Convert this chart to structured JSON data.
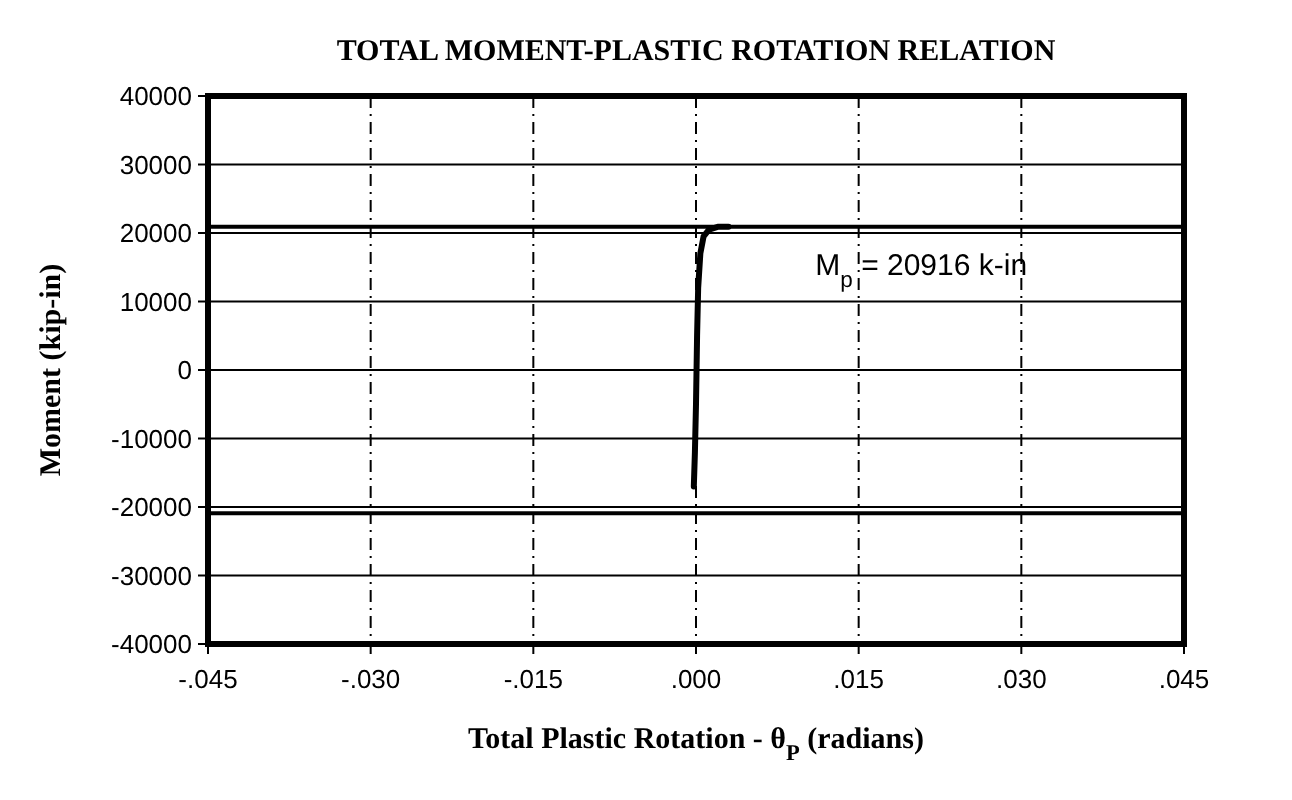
{
  "chart_data": {
    "type": "line",
    "title": "TOTAL MOMENT-PLASTIC ROTATION RELATION",
    "xlabel": "Total Plastic Rotation - θ$_{P}$ (radians)",
    "ylabel": "Moment (kip-in)",
    "series": [
      {
        "color": "#000000",
        "x": [
          -0.0002,
          -0.0001,
          0,
          0.0001,
          0.0002,
          0.0004,
          0.0007,
          0.0012,
          0.002,
          0.003
        ],
        "values": [
          -17000,
          -12000,
          -5000,
          5000,
          12000,
          17000,
          19500,
          20500,
          20900,
          20900
        ]
      }
    ],
    "xlim": [
      -0.045,
      0.045
    ],
    "xticks": [
      {
        "value": -0.045,
        "label": "-.045"
      },
      {
        "value": -0.03,
        "label": "-.030"
      },
      {
        "value": -0.015,
        "label": "-.015"
      },
      {
        "value": 0,
        "label": ".000"
      },
      {
        "value": 0.015,
        "label": ".015"
      },
      {
        "value": 0.03,
        "label": ".030"
      },
      {
        "value": 0.045,
        "label": ".045"
      }
    ],
    "ylim": [
      -40000,
      40000
    ],
    "yticks": [
      -40000,
      -30000,
      -20000,
      -10000,
      0,
      10000,
      20000,
      30000,
      40000
    ],
    "ref_lines": [
      {
        "axis": "y",
        "value": 20916,
        "label": "M$_{p}$ = 20916 k-in",
        "color": "#000000"
      },
      {
        "axis": "y",
        "value": -20916,
        "color": "#000000"
      }
    ],
    "grid": true,
    "line_style": "solid"
  }
}
